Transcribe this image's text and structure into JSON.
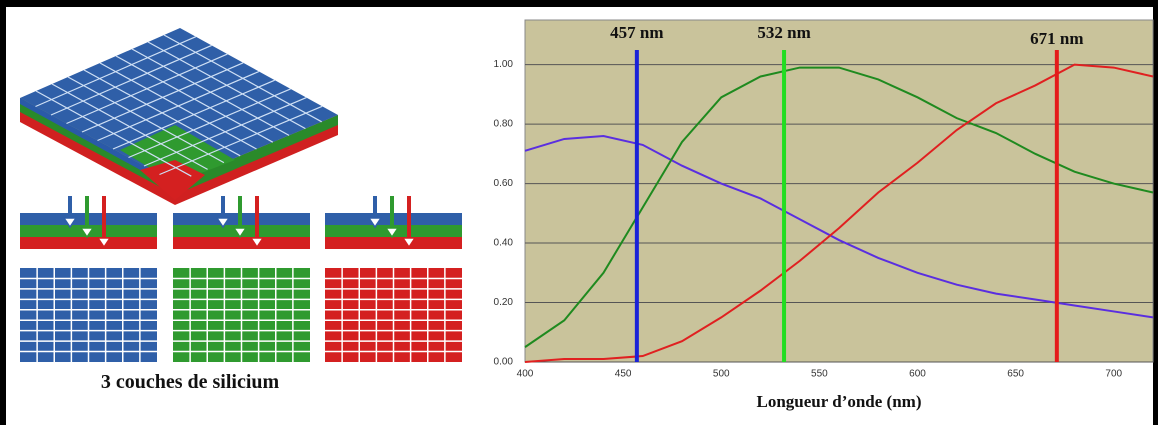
{
  "caption": "3 couches de silicium",
  "chart_data": {
    "type": "line",
    "x_label": "Longueur d’onde (nm)",
    "x": [
      400,
      420,
      440,
      460,
      480,
      500,
      520,
      540,
      560,
      580,
      600,
      620,
      640,
      660,
      680,
      700,
      720
    ],
    "series": [
      {
        "color": "#5a2ee0",
        "values": [
          0.71,
          0.75,
          0.76,
          0.73,
          0.66,
          0.6,
          0.55,
          0.48,
          0.41,
          0.35,
          0.3,
          0.26,
          0.23,
          0.21,
          0.19,
          0.17,
          0.15
        ]
      },
      {
        "color": "#1f8a1f",
        "values": [
          0.05,
          0.14,
          0.3,
          0.52,
          0.74,
          0.89,
          0.96,
          0.99,
          0.99,
          0.95,
          0.89,
          0.82,
          0.77,
          0.7,
          0.64,
          0.6,
          0.57
        ]
      },
      {
        "color": "#e02020",
        "values": [
          0,
          0.01,
          0.01,
          0.02,
          0.07,
          0.15,
          0.24,
          0.34,
          0.45,
          0.57,
          0.67,
          0.78,
          0.87,
          0.93,
          1.0,
          0.99,
          0.96
        ]
      }
    ],
    "markers": [
      {
        "value": 457,
        "label": "457 nm",
        "color": "#1a22d8"
      },
      {
        "value": 532,
        "label": "532 nm",
        "color": "#22dd22"
      },
      {
        "value": 671,
        "label": "671 nm",
        "color": "#e41b1b"
      }
    ],
    "xlim": [
      400,
      720
    ],
    "xticks": [
      400,
      450,
      500,
      550,
      600,
      650,
      700
    ],
    "ylim": [
      0,
      1.15
    ],
    "yticks": [
      {
        "value": 0,
        "label": "0.00"
      },
      {
        "value": 0.2,
        "label": "0.20"
      },
      {
        "value": 0.4,
        "label": "0.40"
      },
      {
        "value": 0.6,
        "label": "0.60"
      },
      {
        "value": 0.8,
        "label": "0.80"
      },
      {
        "value": 1.0,
        "label": "1.00"
      }
    ],
    "grid": true,
    "background": "#c9c39b"
  }
}
